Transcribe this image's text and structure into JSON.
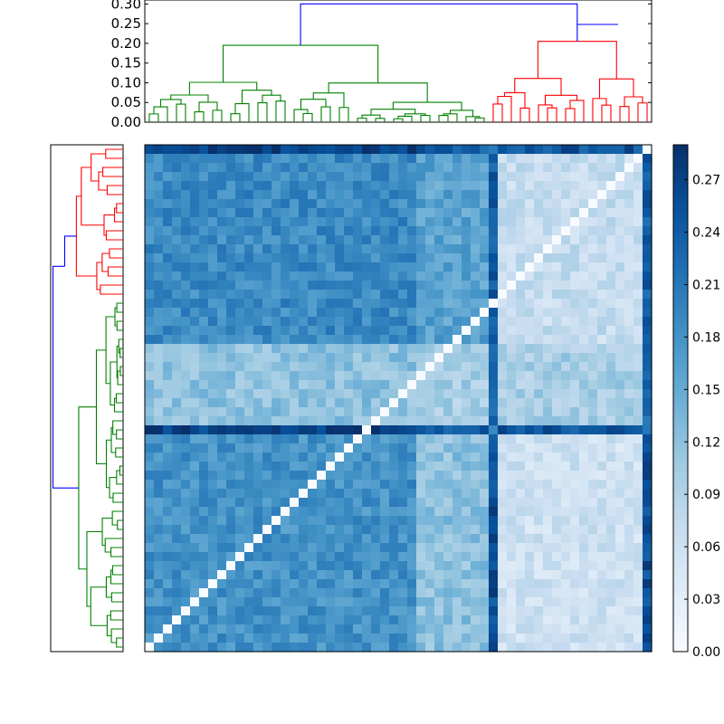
{
  "chart_data": [
    {
      "type": "dendrogram",
      "panel": "top",
      "orientation": "top",
      "ylim": [
        0,
        0.31
      ],
      "yticks": [
        "0.00",
        "0.05",
        "0.10",
        "0.15",
        "0.20",
        "0.25",
        "0.30"
      ],
      "cluster_colors": {
        "green": "#008000",
        "red": "#ff0000",
        "link": "#0000ff"
      },
      "root_height": 0.3,
      "top_clusters": [
        {
          "color": "green",
          "leaves": 38,
          "merge_height": 0.195
        },
        {
          "color": "red",
          "leaves": 18,
          "merge_height": 0.205
        }
      ],
      "red_group_merge_height": 0.248
    },
    {
      "type": "dendrogram",
      "panel": "left",
      "orientation": "left",
      "cluster_colors": {
        "green": "#008000",
        "red": "#ff0000",
        "link": "#0000ff"
      },
      "top_clusters": [
        {
          "color": "red",
          "leaves": 17
        },
        {
          "color": "green",
          "leaves": 39
        }
      ]
    },
    {
      "type": "heatmap",
      "panel": "matrix",
      "rows": 56,
      "cols": 56,
      "value_range": [
        0,
        0.29
      ],
      "colormap": "Blues",
      "colormap_stops": [
        "#f7fbff",
        "#deebf7",
        "#c6dbef",
        "#9ecae1",
        "#6baed6",
        "#4292c6",
        "#2171b5",
        "#08519c",
        "#08306b"
      ],
      "diagonal_value": 0.0
    },
    {
      "type": "colorbar",
      "panel": "colorbar",
      "range": [
        0,
        0.29
      ],
      "tick_labels": [
        "0.00",
        "0.03",
        "0.06",
        "0.09",
        "0.12",
        "0.15",
        "0.18",
        "0.21",
        "0.24",
        "0.27"
      ]
    }
  ]
}
